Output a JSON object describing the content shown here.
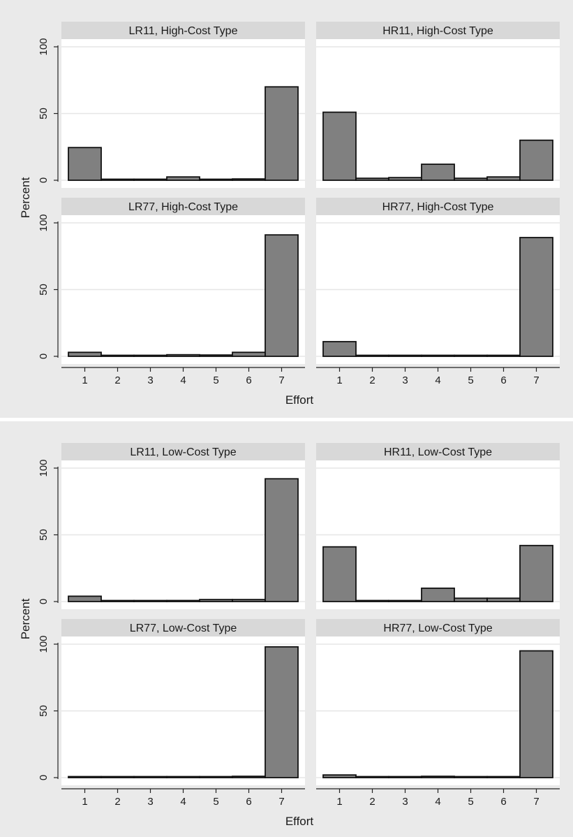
{
  "chart_data": [
    {
      "type": "bar",
      "xlabel": "Effort",
      "ylabel": "Percent",
      "categories": [
        "1",
        "2",
        "3",
        "4",
        "5",
        "6",
        "7"
      ],
      "ylim": [
        0,
        100
      ],
      "yticks": [
        "0",
        "50",
        "100"
      ],
      "grid": true,
      "panels": [
        {
          "title": "LR11, High-Cost Type",
          "values": [
            24.5,
            0.8,
            0.8,
            2.5,
            0.5,
            1.0,
            70.0
          ]
        },
        {
          "title": "HR11, High-Cost Type",
          "values": [
            51.0,
            1.5,
            2.0,
            12.0,
            1.5,
            2.5,
            30.0
          ]
        },
        {
          "title": "LR77, High-Cost Type",
          "values": [
            3.0,
            0.3,
            0.3,
            1.2,
            1.0,
            3.0,
            91.0
          ]
        },
        {
          "title": "HR77, High-Cost Type",
          "values": [
            11.0,
            0.0,
            0.0,
            0.0,
            0.0,
            0.5,
            89.0
          ]
        }
      ]
    },
    {
      "type": "bar",
      "xlabel": "Effort",
      "ylabel": "Percent",
      "categories": [
        "1",
        "2",
        "3",
        "4",
        "5",
        "6",
        "7"
      ],
      "ylim": [
        0,
        100
      ],
      "yticks": [
        "0",
        "50",
        "100"
      ],
      "grid": true,
      "panels": [
        {
          "title": "LR11, Low-Cost Type",
          "values": [
            4.0,
            0.3,
            0.3,
            0.8,
            1.5,
            1.5,
            92.0
          ]
        },
        {
          "title": "HR11, Low-Cost Type",
          "values": [
            41.0,
            0.8,
            0.3,
            10.0,
            2.5,
            2.5,
            42.0
          ]
        },
        {
          "title": "LR77, Low-Cost Type",
          "values": [
            0.0,
            0.0,
            0.0,
            0.5,
            0.5,
            1.0,
            98.0
          ]
        },
        {
          "title": "HR77, Low-Cost Type",
          "values": [
            2.0,
            0.3,
            0.3,
            1.0,
            0.3,
            0.3,
            95.0
          ]
        }
      ]
    }
  ],
  "colors": {
    "figure_bg": "#eaeaea",
    "plot_bg": "#ffffff",
    "title_strip": "#d8d8d8",
    "bar_fill": "#808080",
    "bar_stroke": "#111111",
    "grid": "#e6e6e6"
  }
}
